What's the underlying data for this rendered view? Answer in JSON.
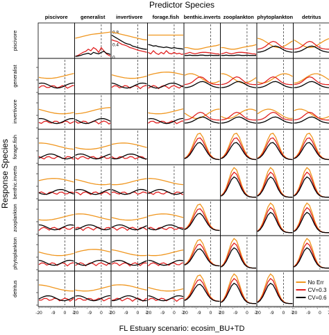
{
  "title": "Predictor Species",
  "ylabel": "Response Species",
  "xlabel": "FL Estuary scenario: ecosim_BU+TD",
  "colors": {
    "no_err": "#f0961e",
    "cv03": "#e02020",
    "cv06": "#000000"
  },
  "chart_data": {
    "type": "line",
    "title": "Predictor Species",
    "xlabel": "FL Estuary scenario: ecosim_BU+TD",
    "ylabel": "Response Species",
    "layout": "8x8 grid of small multiples (rows = response species, columns = predictor species); diagonal panels empty",
    "predictor_species": [
      "piscivore",
      "generalist",
      "invertivore",
      "forage.fish",
      "benthic.inverts",
      "zooplankton",
      "phytoplankton",
      "detritus"
    ],
    "response_species": [
      "piscivore",
      "generalist",
      "invertivore",
      "forage.fish",
      "benthic.inverts",
      "zooplankton",
      "phytoplankton",
      "detritus"
    ],
    "x_ticks": [
      "-20",
      "-9",
      "0",
      "7"
    ],
    "xlim": [
      -20,
      7
    ],
    "vline_x": 0,
    "y_ticks": [
      "0",
      "0.4",
      "0.8"
    ],
    "ylim": [
      0,
      1
    ],
    "grid": false,
    "legend": {
      "placement": "bottom-right",
      "entries": [
        {
          "label": "No Err",
          "color": "#f0961e"
        },
        {
          "label": "CV=0.3",
          "color": "#e02020"
        },
        {
          "label": "CV=0.6",
          "color": "#000000"
        }
      ]
    },
    "x": [
      -20,
      -18,
      -16,
      -14,
      -12,
      -10,
      -8,
      -6,
      -4,
      -2,
      0,
      2,
      4,
      6,
      7
    ],
    "panels": [
      {
        "response": "piscivore",
        "predictor": "generalist",
        "series": [
          {
            "name": "No Err",
            "values": [
              0.6,
              0.62,
              0.64,
              0.66,
              0.68,
              0.7,
              0.72,
              0.73,
              0.74,
              0.75,
              0.76,
              0.77,
              0.78,
              0.79,
              0.8
            ]
          },
          {
            "name": "CV=0.3",
            "values": [
              0.02,
              0.05,
              0.1,
              0.15,
              0.18,
              0.25,
              0.2,
              0.3,
              0.25,
              0.15,
              0.3,
              0.2,
              0.1,
              0.05,
              0.03
            ]
          },
          {
            "name": "CV=0.6",
            "values": [
              0.02,
              0.03,
              0.05,
              0.08,
              0.1,
              0.12,
              0.08,
              0.15,
              0.12,
              0.1,
              0.15,
              0.18,
              0.12,
              0.1,
              0.08
            ]
          }
        ]
      },
      {
        "response": "piscivore",
        "predictor": "invertivore",
        "series": [
          {
            "name": "No Err",
            "values": [
              0.8,
              0.78,
              0.76,
              0.74,
              0.72,
              0.7,
              0.68,
              0.66,
              0.64,
              0.62,
              0.6,
              0.58,
              0.56,
              0.55,
              0.55
            ]
          },
          {
            "name": "CV=0.3",
            "values": [
              0.55,
              0.52,
              0.5,
              0.45,
              0.4,
              0.38,
              0.35,
              0.3,
              0.28,
              0.25,
              0.22,
              0.2,
              0.18,
              0.16,
              0.15
            ]
          },
          {
            "name": "CV=0.6",
            "values": [
              0.7,
              0.65,
              0.6,
              0.55,
              0.5,
              0.45,
              0.42,
              0.4,
              0.35,
              0.33,
              0.3,
              0.28,
              0.26,
              0.25,
              0.25
            ]
          }
        ]
      },
      {
        "response": "piscivore",
        "predictor": "forage.fish",
        "series": [
          {
            "name": "No Err",
            "values": [
              0.7,
              0.7,
              0.7,
              0.7,
              0.7,
              0.7,
              0.7,
              0.7,
              0.7,
              0.7,
              0.7,
              0.7,
              0.7,
              0.7,
              0.7
            ]
          },
          {
            "name": "CV=0.3",
            "values": [
              0.15,
              0.1,
              0.2,
              0.12,
              0.08,
              0.15,
              0.1,
              0.2,
              0.12,
              0.1,
              0.15,
              0.1,
              0.12,
              0.08,
              0.1
            ]
          },
          {
            "name": "CV=0.6",
            "values": [
              0.4,
              0.38,
              0.35,
              0.36,
              0.33,
              0.32,
              0.3,
              0.32,
              0.3,
              0.28,
              0.3,
              0.28,
              0.27,
              0.26,
              0.25
            ]
          }
        ]
      },
      {
        "response": "piscivore",
        "predictor": "benthic.inverts",
        "series": [
          {
            "name": "No Err",
            "values": [
              0.3,
              0.3,
              0.28,
              0.26,
              0.25,
              0.25,
              0.26,
              0.28,
              0.3,
              0.32,
              0.33,
              0.35,
              0.36,
              0.38,
              0.4
            ]
          },
          {
            "name": "CV=0.3",
            "values": [
              0.1,
              0.12,
              0.15,
              0.12,
              0.1,
              0.12,
              0.14,
              0.15,
              0.15,
              0.14,
              0.13,
              0.12,
              0.1,
              0.1,
              0.08
            ]
          },
          {
            "name": "CV=0.6",
            "values": [
              0.05,
              0.05,
              0.06,
              0.05,
              0.05,
              0.05,
              0.06,
              0.06,
              0.05,
              0.05,
              0.06,
              0.05,
              0.05,
              0.05,
              0.05
            ]
          }
        ]
      },
      {
        "response": "piscivore",
        "predictor": "zooplankton",
        "series": [
          {
            "name": "No Err",
            "values": [
              0.3,
              0.3,
              0.28,
              0.26,
              0.25,
              0.25,
              0.26,
              0.28,
              0.3,
              0.32,
              0.33,
              0.35,
              0.36,
              0.38,
              0.4
            ]
          },
          {
            "name": "CV=0.3",
            "values": [
              0.1,
              0.12,
              0.15,
              0.12,
              0.1,
              0.12,
              0.14,
              0.15,
              0.15,
              0.14,
              0.13,
              0.12,
              0.1,
              0.1,
              0.08
            ]
          },
          {
            "name": "CV=0.6",
            "values": [
              0.05,
              0.05,
              0.06,
              0.05,
              0.05,
              0.05,
              0.06,
              0.06,
              0.05,
              0.05,
              0.06,
              0.05,
              0.05,
              0.05,
              0.05
            ]
          }
        ]
      }
    ],
    "note_other_panels": "Remaining panels share the same axes and series; lower-right block shows bell-shaped curves peaking near x≈-9"
  },
  "row_labels": [
    "piscivore",
    "generalist",
    "invertivore",
    "forage.fish",
    "benthic.inverts",
    "zooplankton",
    "phytoplankton",
    "detritus"
  ],
  "col_labels": [
    "piscivore",
    "generalist",
    "invertivore",
    "forage.fish",
    "benthic.inverts",
    "zooplankton",
    "phytoplankton",
    "detritus"
  ],
  "left_ticks": [
    "0",
    "0.4",
    "0.8"
  ],
  "bottom_ticks": [
    "-20",
    "-9",
    "0",
    "7"
  ],
  "legend": {
    "no_err": "No Err",
    "cv03": "CV=0.3",
    "cv06": "CV=0.6"
  }
}
